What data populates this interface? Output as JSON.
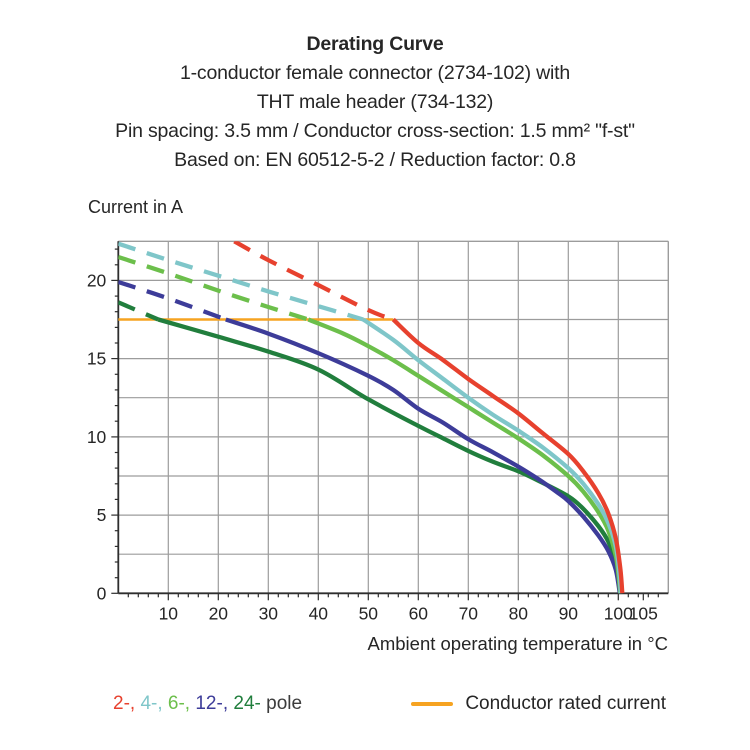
{
  "title": {
    "line1": "Derating Curve",
    "line2": "1-conductor female connector (2734-102) with",
    "line3": "THT male header (734-132)",
    "line4": "Pin spacing: 3.5 mm / Conductor cross-section: 1.5 mm² \"f-st\"",
    "line5": "Based on: EN 60512-5-2 / Reduction factor: 0.8"
  },
  "axis": {
    "y_title": "Current in A",
    "x_title": "Ambient operating temperature in °C"
  },
  "legend": {
    "pole_items": [
      {
        "label": "2-",
        "color": "#e7412e"
      },
      {
        "label": "4-",
        "color": "#7fc6c9"
      },
      {
        "label": "6-",
        "color": "#6cbf4b"
      },
      {
        "label": "12-",
        "color": "#3d3c99"
      },
      {
        "label": "24-",
        "color": "#217e3d"
      }
    ],
    "pole_suffix": "pole",
    "rated_label": "Conductor rated current"
  },
  "chart_data": {
    "type": "line",
    "title": "Derating Curve",
    "xlabel": "Ambient operating temperature in °C",
    "ylabel": "Current in A",
    "xlim": [
      0,
      110
    ],
    "ylim": [
      0,
      22.5
    ],
    "grid": true,
    "x_major_grid_step": 10,
    "y_major_grid_step": 2.5,
    "x_minor_tick_step": 2,
    "y_minor_tick_step": 1,
    "x_tick_labels": [
      10,
      20,
      30,
      40,
      50,
      60,
      70,
      80,
      90,
      100,
      105
    ],
    "y_tick_labels": [
      0,
      5,
      10,
      15,
      20
    ],
    "line_style_note": "dashed while above conductor rated current (17.5 A), solid below",
    "rated_current": {
      "label": "Conductor rated current",
      "value": 17.5,
      "x_start": 0,
      "x_end": 55,
      "color": "#f6a321"
    },
    "series": [
      {
        "name": "2-pole",
        "color": "#e7412e",
        "dashed": [
          [
            23.2,
            22.5
          ],
          [
            30,
            21.3
          ],
          [
            40,
            19.7
          ],
          [
            50,
            18.1
          ],
          [
            55,
            17.5
          ]
        ],
        "solid": [
          [
            55,
            17.5
          ],
          [
            60,
            16.0
          ],
          [
            65,
            14.9
          ],
          [
            70,
            13.7
          ],
          [
            75,
            12.6
          ],
          [
            80,
            11.5
          ],
          [
            85,
            10.2
          ],
          [
            90,
            8.9
          ],
          [
            93,
            7.8
          ],
          [
            96,
            6.4
          ],
          [
            98,
            5.1
          ],
          [
            99.5,
            3.5
          ],
          [
            100.4,
            1.6
          ],
          [
            100.8,
            0
          ]
        ]
      },
      {
        "name": "4-pole",
        "color": "#7fc6c9",
        "dashed": [
          [
            0,
            22.35
          ],
          [
            10,
            21.3
          ],
          [
            20,
            20.3
          ],
          [
            30,
            19.3
          ],
          [
            40,
            18.35
          ],
          [
            49,
            17.5
          ]
        ],
        "solid": [
          [
            49,
            17.5
          ],
          [
            55,
            16.2
          ],
          [
            60,
            14.9
          ],
          [
            65,
            13.7
          ],
          [
            70,
            12.5
          ],
          [
            75,
            11.4
          ],
          [
            80,
            10.4
          ],
          [
            85,
            9.3
          ],
          [
            90,
            8.0
          ],
          [
            93,
            7.0
          ],
          [
            96,
            5.7
          ],
          [
            98,
            4.5
          ],
          [
            99.5,
            3.0
          ],
          [
            100.2,
            1.3
          ],
          [
            100.5,
            0
          ]
        ]
      },
      {
        "name": "6-pole",
        "color": "#6cbf4b",
        "dashed": [
          [
            0,
            21.5
          ],
          [
            10,
            20.45
          ],
          [
            20,
            19.35
          ],
          [
            30,
            18.3
          ],
          [
            38,
            17.5
          ]
        ],
        "solid": [
          [
            38,
            17.5
          ],
          [
            45,
            16.6
          ],
          [
            50,
            15.8
          ],
          [
            55,
            14.9
          ],
          [
            60,
            13.9
          ],
          [
            65,
            12.9
          ],
          [
            70,
            11.9
          ],
          [
            75,
            10.9
          ],
          [
            80,
            9.9
          ],
          [
            85,
            8.8
          ],
          [
            90,
            7.5
          ],
          [
            93,
            6.5
          ],
          [
            96,
            5.2
          ],
          [
            98,
            4.0
          ],
          [
            99.5,
            2.4
          ],
          [
            100.1,
            1.0
          ],
          [
            100.4,
            0
          ]
        ]
      },
      {
        "name": "12-pole",
        "color": "#3d3c99",
        "dashed": [
          [
            0,
            19.9
          ],
          [
            10,
            18.85
          ],
          [
            21.5,
            17.5
          ]
        ],
        "solid": [
          [
            21.5,
            17.5
          ],
          [
            30,
            16.6
          ],
          [
            40,
            15.35
          ],
          [
            50,
            13.9
          ],
          [
            55,
            13.0
          ],
          [
            60,
            11.8
          ],
          [
            65,
            10.9
          ],
          [
            70,
            9.85
          ],
          [
            75,
            9.0
          ],
          [
            80,
            8.1
          ],
          [
            84,
            7.3
          ],
          [
            88,
            6.4
          ],
          [
            90,
            5.9
          ],
          [
            93,
            4.9
          ],
          [
            96,
            3.7
          ],
          [
            98,
            2.7
          ],
          [
            99.5,
            1.5
          ],
          [
            100.3,
            0
          ]
        ]
      },
      {
        "name": "24-pole",
        "color": "#217e3d",
        "dashed": [
          [
            0,
            18.6
          ],
          [
            8,
            17.5
          ]
        ],
        "solid": [
          [
            8,
            17.5
          ],
          [
            20,
            16.4
          ],
          [
            30,
            15.45
          ],
          [
            40,
            14.3
          ],
          [
            50,
            12.4
          ],
          [
            60,
            10.7
          ],
          [
            65,
            9.9
          ],
          [
            70,
            9.1
          ],
          [
            75,
            8.4
          ],
          [
            80,
            7.8
          ],
          [
            84,
            7.2
          ],
          [
            90,
            6.2
          ],
          [
            93,
            5.4
          ],
          [
            96,
            4.3
          ],
          [
            98,
            3.3
          ],
          [
            99.5,
            1.9
          ],
          [
            100.4,
            0
          ]
        ]
      }
    ],
    "legend_entries": [
      "2-, 4-, 6-, 12-, 24- pole",
      "Conductor rated current"
    ],
    "legend_position": "bottom"
  }
}
